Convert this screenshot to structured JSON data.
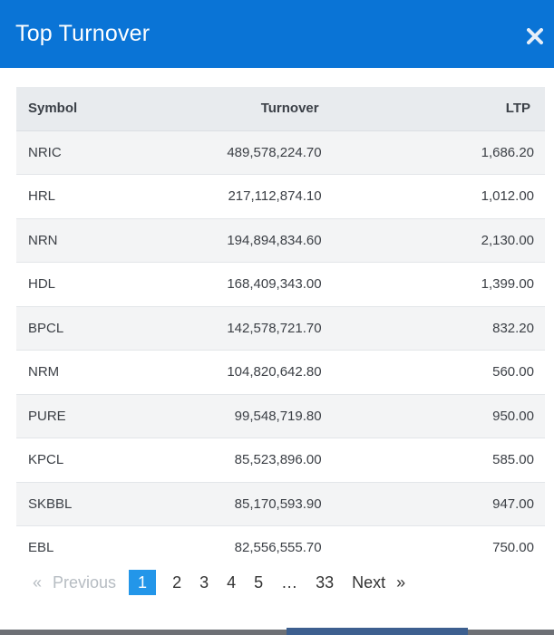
{
  "modal": {
    "title": "Top Turnover",
    "close_icon": "close-icon"
  },
  "table": {
    "headers": {
      "symbol": "Symbol",
      "turnover": "Turnover",
      "ltp": "LTP"
    },
    "rows": [
      {
        "symbol": "NRIC",
        "turnover": "489,578,224.70",
        "ltp": "1,686.20"
      },
      {
        "symbol": "HRL",
        "turnover": "217,112,874.10",
        "ltp": "1,012.00"
      },
      {
        "symbol": "NRN",
        "turnover": "194,894,834.60",
        "ltp": "2,130.00"
      },
      {
        "symbol": "HDL",
        "turnover": "168,409,343.00",
        "ltp": "1,399.00"
      },
      {
        "symbol": "BPCL",
        "turnover": "142,578,721.70",
        "ltp": "832.20"
      },
      {
        "symbol": "NRM",
        "turnover": "104,820,642.80",
        "ltp": "560.00"
      },
      {
        "symbol": "PURE",
        "turnover": "99,548,719.80",
        "ltp": "950.00"
      },
      {
        "symbol": "KPCL",
        "turnover": "85,523,896.00",
        "ltp": "585.00"
      },
      {
        "symbol": "SKBBL",
        "turnover": "85,170,593.90",
        "ltp": "947.00"
      },
      {
        "symbol": "EBL",
        "turnover": "82,556,555.70",
        "ltp": "750.00"
      }
    ]
  },
  "pagination": {
    "prev_arrow": "«",
    "prev_label": "Previous",
    "pages": [
      "1",
      "2",
      "3",
      "4",
      "5"
    ],
    "active_page": "1",
    "ellipsis": "…",
    "last_page": "33",
    "next_label": "Next",
    "next_arrow": "»"
  },
  "colors": {
    "header_bg": "#0a74d6",
    "active_page_bg": "#2396e9"
  }
}
